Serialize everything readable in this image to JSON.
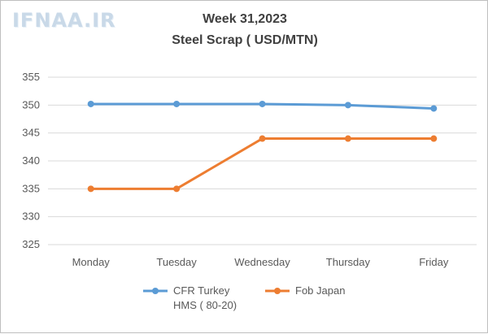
{
  "watermark": "IFNAA.IR",
  "chart_data": {
    "type": "line",
    "title_line1": "Week 31,2023",
    "title_line2": "Steel Scrap ( USD/MTN)",
    "categories": [
      "Monday",
      "Tuesday",
      "Wednesday",
      "Thursday",
      "Friday"
    ],
    "ylim": [
      325,
      355
    ],
    "yticks": [
      325,
      330,
      335,
      340,
      345,
      350,
      355
    ],
    "grid": true,
    "legend_position": "bottom",
    "series": [
      {
        "name_line1": "CFR Turkey",
        "name_line2": "HMS ( 80-20)",
        "color": "#5b9bd5",
        "values": [
          350.2,
          350.2,
          350.2,
          350.0,
          349.4
        ]
      },
      {
        "name_line1": "Fob Japan",
        "name_line2": "",
        "color": "#ed7d31",
        "values": [
          335,
          335,
          344,
          344,
          344
        ]
      }
    ]
  }
}
